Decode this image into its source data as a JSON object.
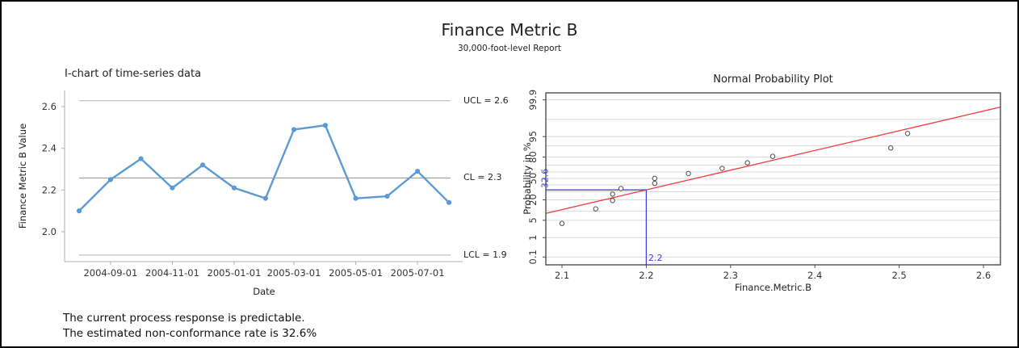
{
  "page": {
    "title": "Finance Metric B",
    "subtitle": "30,000-foot-level Report",
    "footer_lines": [
      "The current process response is predictable.",
      "The estimated non-conformance rate is 32.6%"
    ]
  },
  "chart_data": [
    {
      "type": "line",
      "id": "i_chart",
      "title": "I-chart of time-series data",
      "xlabel": "Date",
      "ylabel": "Finance Metric B Value",
      "x": [
        "2004-08-01",
        "2004-09-01",
        "2004-10-01",
        "2004-11-01",
        "2004-12-01",
        "2005-01-01",
        "2005-02-01",
        "2005-03-01",
        "2005-04-01",
        "2005-05-01",
        "2005-06-01",
        "2005-07-01",
        "2005-08-01"
      ],
      "values": [
        2.1,
        2.25,
        2.35,
        2.21,
        2.32,
        2.21,
        2.16,
        2.49,
        2.51,
        2.16,
        2.17,
        2.29,
        2.14
      ],
      "x_tick_labels": [
        "2004-09-01",
        "2004-11-01",
        "2005-01-01",
        "2005-03-01",
        "2005-05-01",
        "2005-07-01"
      ],
      "y_ticks": [
        2.0,
        2.2,
        2.4,
        2.6
      ],
      "ylim": [
        1.85,
        2.675
      ],
      "grid": false,
      "legend": null,
      "control_limits": {
        "ucl": 2.628,
        "cl": 2.258,
        "lcl": 1.888
      },
      "limit_labels": [
        "UCL = 2.6",
        "CL = 2.3",
        "LCL = 1.9"
      ],
      "line_color": "#5B9BD5",
      "limit_line_color": "#b5b5b5",
      "center_line_color": "#8f8f8f"
    },
    {
      "type": "scatter",
      "id": "normal_probability_plot",
      "title": "Normal Probability Plot",
      "xlabel": "Finance.Metric.B",
      "ylabel": "Probability in %",
      "y_scale": "probit",
      "x_sorted_values": [
        2.1,
        2.14,
        2.16,
        2.16,
        2.17,
        2.21,
        2.21,
        2.25,
        2.29,
        2.32,
        2.35,
        2.49,
        2.51
      ],
      "percentiles": [
        3.85,
        11.54,
        19.23,
        26.92,
        34.62,
        42.31,
        50,
        57.69,
        65.38,
        73.08,
        80.77,
        88.46,
        96.15
      ],
      "x_ticks": [
        2.1,
        2.2,
        2.3,
        2.4,
        2.5,
        2.6
      ],
      "y_tick_labels": [
        0.1,
        1,
        5,
        20,
        50,
        80,
        95,
        99.9
      ],
      "y_gridlines": [
        0.1,
        1,
        5,
        10,
        20,
        30,
        40,
        50,
        60,
        70,
        80,
        90,
        95,
        99,
        99.9
      ],
      "xlim": [
        2.081,
        2.62
      ],
      "ylim_percent": [
        0.034,
        99.96
      ],
      "grid": true,
      "fit_line": {
        "mean": 2.258,
        "sd": 0.129,
        "color": "#ef3b3b"
      },
      "reference": {
        "x": 2.2,
        "x_label": "2.2",
        "probability": 32.6,
        "p_label": "32.6",
        "color": "#4444e0"
      },
      "point_color": "#4d4d4d"
    }
  ]
}
